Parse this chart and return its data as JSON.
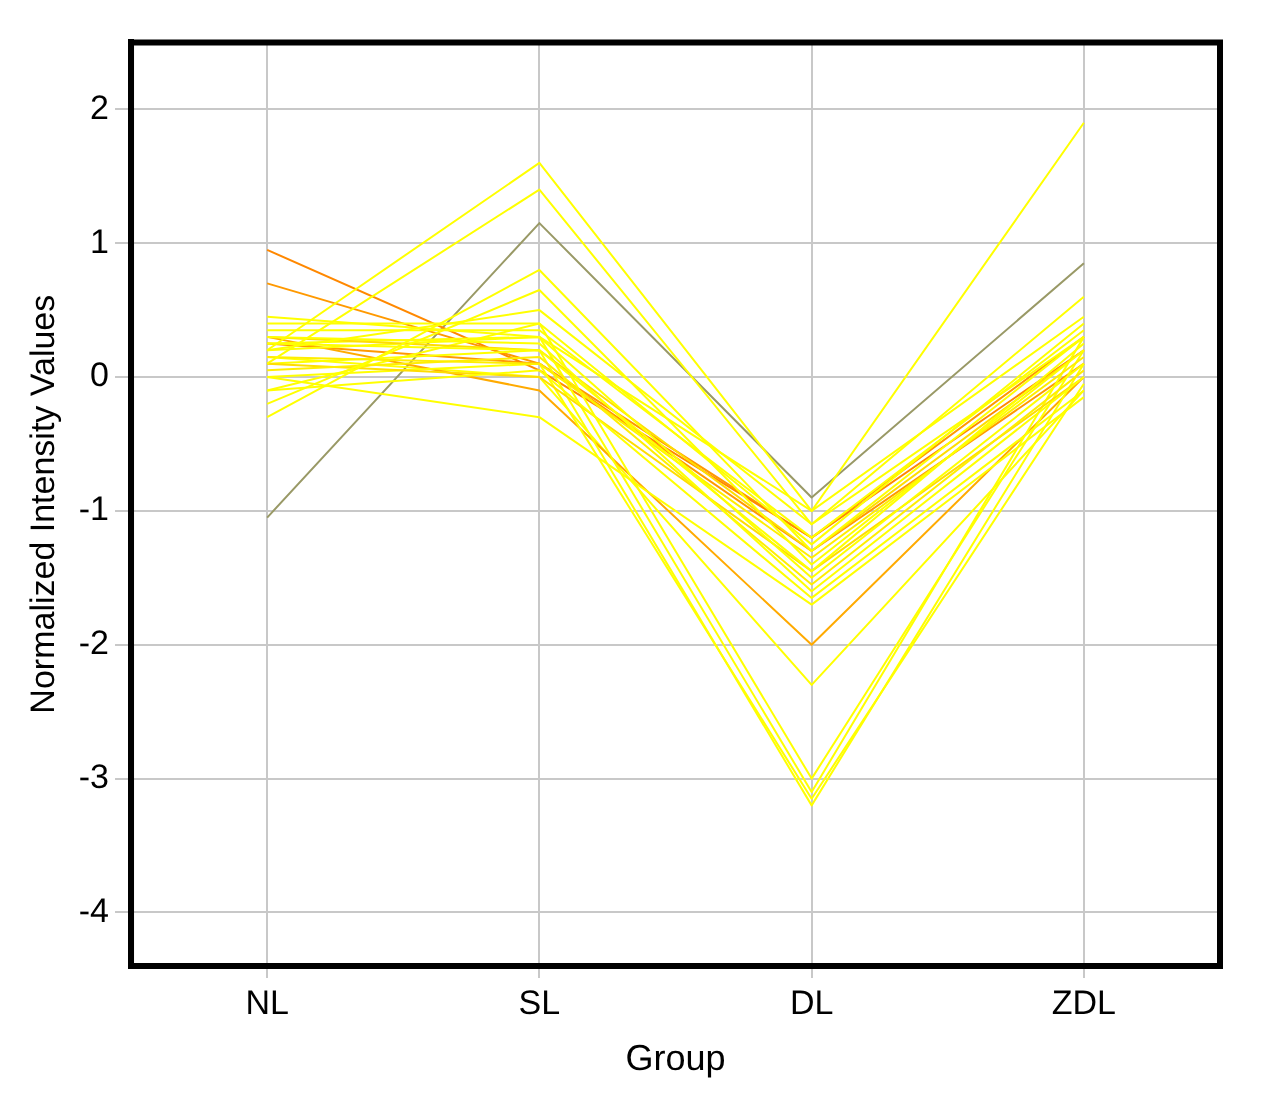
{
  "chart_data": {
    "type": "line",
    "xlabel": "Group",
    "ylabel": "Normalized Intensity Values",
    "categories": [
      "NL",
      "SL",
      "DL",
      "ZDL"
    ],
    "ylim": [
      -4.4,
      2.5
    ],
    "yticks": [
      -4,
      -3,
      -2,
      -1,
      0,
      1,
      2
    ],
    "grid": true,
    "legend": false,
    "marker": "none",
    "line_style": "solid",
    "series": [
      {
        "color": "#ffff00",
        "values": [
          0.2,
          1.6,
          -1.0,
          1.9
        ]
      },
      {
        "color": "#ffff00",
        "values": [
          0.1,
          1.4,
          -1.1,
          0.6
        ]
      },
      {
        "color": "#ffff00",
        "values": [
          -0.3,
          0.8,
          -1.3,
          0.3
        ]
      },
      {
        "color": "#ffff00",
        "values": [
          -0.2,
          0.65,
          -1.4,
          0.2
        ]
      },
      {
        "color": "#ffff00",
        "values": [
          0.45,
          0.3,
          -1.5,
          0.1
        ]
      },
      {
        "color": "#ffff00",
        "values": [
          0.3,
          0.25,
          -1.6,
          0.0
        ]
      },
      {
        "color": "#ffff00",
        "values": [
          0.25,
          0.2,
          -1.45,
          0.25
        ]
      },
      {
        "color": "#ffff00",
        "values": [
          0.35,
          0.35,
          -1.2,
          0.35
        ]
      },
      {
        "color": "#ffee00",
        "values": [
          0.15,
          0.1,
          -1.35,
          0.15
        ]
      },
      {
        "color": "#ffee00",
        "values": [
          0.05,
          0.15,
          -1.55,
          0.05
        ]
      },
      {
        "color": "#ffff00",
        "values": [
          0.4,
          0.4,
          -1.25,
          0.4
        ]
      },
      {
        "color": "#ffff00",
        "values": [
          -0.1,
          0.05,
          -1.65,
          -0.1
        ]
      },
      {
        "color": "#ffff00",
        "values": [
          0.0,
          -0.3,
          -1.7,
          -0.15
        ]
      },
      {
        "color": "#ffff00",
        "values": [
          0.2,
          0.5,
          -1.1,
          0.3
        ]
      },
      {
        "color": "#ffdd00",
        "values": [
          0.3,
          0.2,
          -1.3,
          0.2
        ]
      },
      {
        "color": "#ffdd00",
        "values": [
          0.1,
          0.0,
          -1.45,
          0.0
        ]
      },
      {
        "color": "#ffff00",
        "values": [
          0.25,
          0.3,
          -1.0,
          0.45
        ]
      },
      {
        "color": "#ffff00",
        "values": [
          0.2,
          0.3,
          -3.1,
          0.3
        ]
      },
      {
        "color": "#ffff00",
        "values": [
          0.1,
          0.2,
          -3.2,
          0.1
        ]
      },
      {
        "color": "#ffff00",
        "values": [
          0.0,
          0.1,
          -3.15,
          -0.05
        ]
      },
      {
        "color": "#ffff00",
        "values": [
          -0.1,
          0.4,
          -3.0,
          0.2
        ]
      },
      {
        "color": "#ffaa00",
        "values": [
          0.3,
          -0.1,
          -2.0,
          0.0
        ]
      },
      {
        "color": "#ffff00",
        "values": [
          0.15,
          0.0,
          -2.3,
          -0.1
        ]
      },
      {
        "color": "#ff8800",
        "values": [
          0.95,
          0.05,
          -1.2,
          0.2
        ]
      },
      {
        "color": "#ff9900",
        "values": [
          0.7,
          0.1,
          -1.3,
          0.1
        ]
      },
      {
        "color": "#ff9900",
        "values": [
          0.25,
          0.1,
          -1.2,
          0.3
        ]
      },
      {
        "color": "#999966",
        "values": [
          -1.05,
          1.15,
          -0.9,
          0.85
        ]
      }
    ]
  }
}
